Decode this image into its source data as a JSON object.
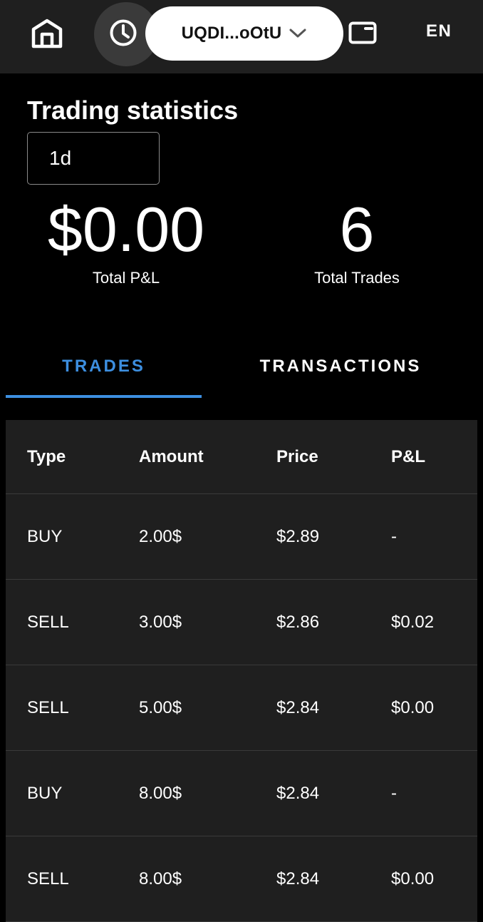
{
  "nav": {
    "wallet_address": "UQDI...oOtU",
    "language": "EN",
    "icons": {
      "home": "home-icon",
      "history": "clock-icon",
      "chevron": "chevron-down-icon",
      "card": "card-icon"
    }
  },
  "stats": {
    "title": "Trading statistics",
    "period": "1d",
    "total_pnl_value": "$0.00",
    "total_pnl_label": "Total P&L",
    "total_trades_value": "6",
    "total_trades_label": "Total Trades"
  },
  "tabs": [
    {
      "label": "TRADES",
      "active": true
    },
    {
      "label": "TRANSACTIONS",
      "active": false
    }
  ],
  "table": {
    "columns": [
      "Type",
      "Amount",
      "Price",
      "P&L"
    ],
    "rows": [
      [
        "BUY",
        "2.00$",
        "$2.89",
        "-"
      ],
      [
        "SELL",
        "3.00$",
        "$2.86",
        "$0.02"
      ],
      [
        "SELL",
        "5.00$",
        "$2.84",
        "$0.00"
      ],
      [
        "BUY",
        "8.00$",
        "$2.84",
        "-"
      ],
      [
        "SELL",
        "8.00$",
        "$2.84",
        "$0.00"
      ]
    ]
  },
  "colors": {
    "accent": "#3d8fe0",
    "background": "#000000",
    "surface": "#1f1f1f"
  }
}
